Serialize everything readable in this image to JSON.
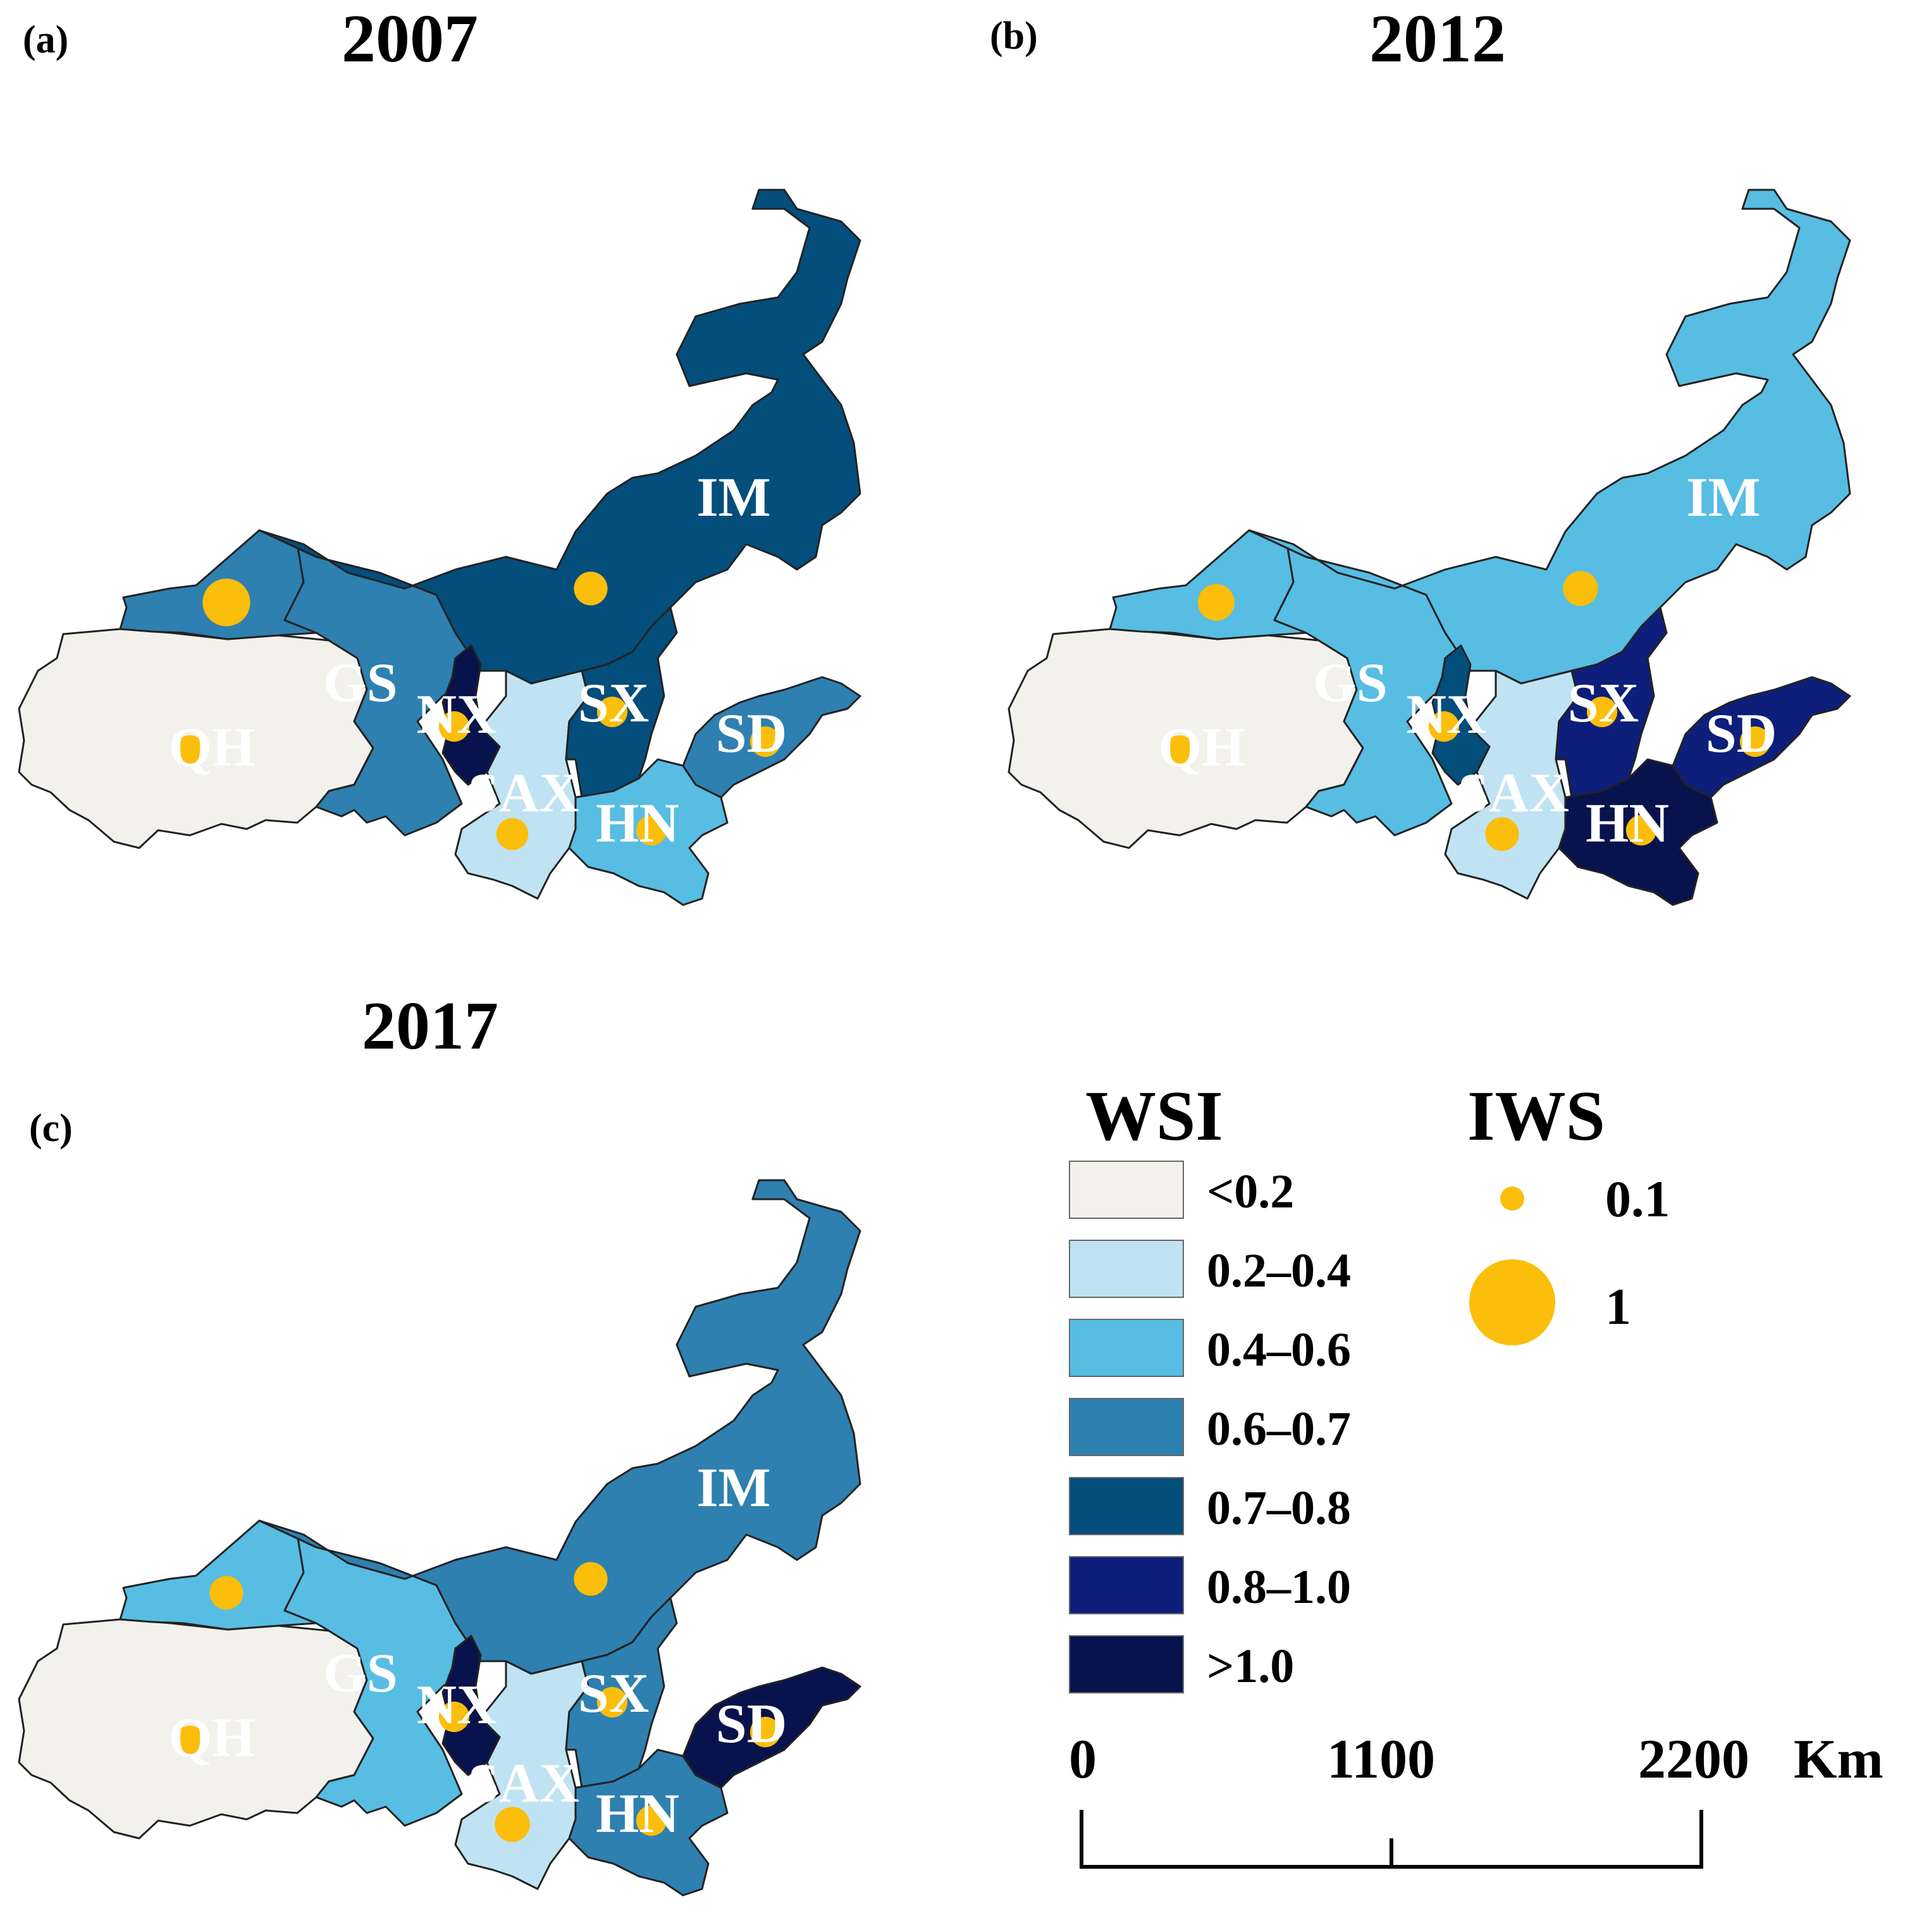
{
  "palette": {
    "lt02": "#f3f1ec",
    "b02_04": "#bfe3f2",
    "b04_06": "#57bde3",
    "b06_07": "#2e80b0",
    "b07_08": "#044e7c",
    "b08_10": "#0d1f7a",
    "gt10": "#08124d",
    "dot": "#fbbe0a",
    "stroke": "#222222"
  },
  "province_abbrevs": [
    "QH",
    "GS",
    "NX",
    "SAX",
    "IM",
    "SX",
    "HN",
    "SD"
  ],
  "panels": [
    {
      "tag": "(a)",
      "year": "2007",
      "wsi_class": {
        "QH": "<0.2",
        "XJ_GS_W": "0.6–0.7",
        "GS": "0.6–0.7",
        "IM": "0.7–0.8",
        "NX": ">1.0",
        "SAX": "0.2–0.4",
        "SX": "0.7–0.8",
        "HN": "0.4–0.6",
        "SD": "0.6–0.7"
      },
      "iws": {
        "XJ_GS_W": 0.9,
        "IM": 0.45,
        "NX": 0.35,
        "SX": 0.35,
        "SAX": 0.4,
        "HN": 0.35,
        "SD": 0.35,
        "QH": 0.35
      }
    },
    {
      "tag": "(b)",
      "year": "2012",
      "wsi_class": {
        "QH": "<0.2",
        "XJ_GS_W": "0.4–0.6",
        "GS": "0.4–0.6",
        "IM": "0.4–0.6",
        "NX": "0.7–0.8",
        "SAX": "0.2–0.4",
        "SX": "0.8–1.0",
        "HN": ">1.0",
        "SD": "0.8–1.0"
      },
      "iws": {
        "XJ_GS_W": 0.55,
        "IM": 0.5,
        "NX": 0.35,
        "SX": 0.35,
        "SAX": 0.45,
        "HN": 0.35,
        "SD": 0.35,
        "QH": 0.35
      }
    },
    {
      "tag": "(c)",
      "year": "2017",
      "wsi_class": {
        "QH": "<0.2",
        "XJ_GS_W": "0.4–0.6",
        "GS": "0.4–0.6",
        "IM": "0.6–0.7",
        "NX": ">1.0",
        "SAX": "0.2–0.4",
        "SX": "0.6–0.7",
        "HN": "0.6–0.7",
        "SD": ">1.0"
      },
      "iws": {
        "XJ_GS_W": 0.45,
        "IM": 0.45,
        "NX": 0.35,
        "SX": 0.35,
        "SAX": 0.5,
        "HN": 0.35,
        "SD": 0.35,
        "QH": 0.35
      }
    }
  ],
  "legend": {
    "wsi_title": "WSI",
    "iws_title": "IWS",
    "classes": [
      {
        "label": "<0.2",
        "color": "#f3f1ec"
      },
      {
        "label": "0.2–0.4",
        "color": "#bfe3f2"
      },
      {
        "label": "0.4–0.6",
        "color": "#57bde3"
      },
      {
        "label": "0.6–0.7",
        "color": "#2e80b0"
      },
      {
        "label": "0.7–0.8",
        "color": "#044e7c"
      },
      {
        "label": "0.8–1.0",
        "color": "#0d1f7a"
      },
      {
        "label": ">1.0",
        "color": "#08124d"
      }
    ],
    "iws_sizes": [
      {
        "label": "0.1",
        "value": 0.1
      },
      {
        "label": "1",
        "value": 1
      }
    ]
  },
  "scalebar": {
    "ticks": [
      "0",
      "1100",
      "2200"
    ],
    "unit": "Km"
  }
}
